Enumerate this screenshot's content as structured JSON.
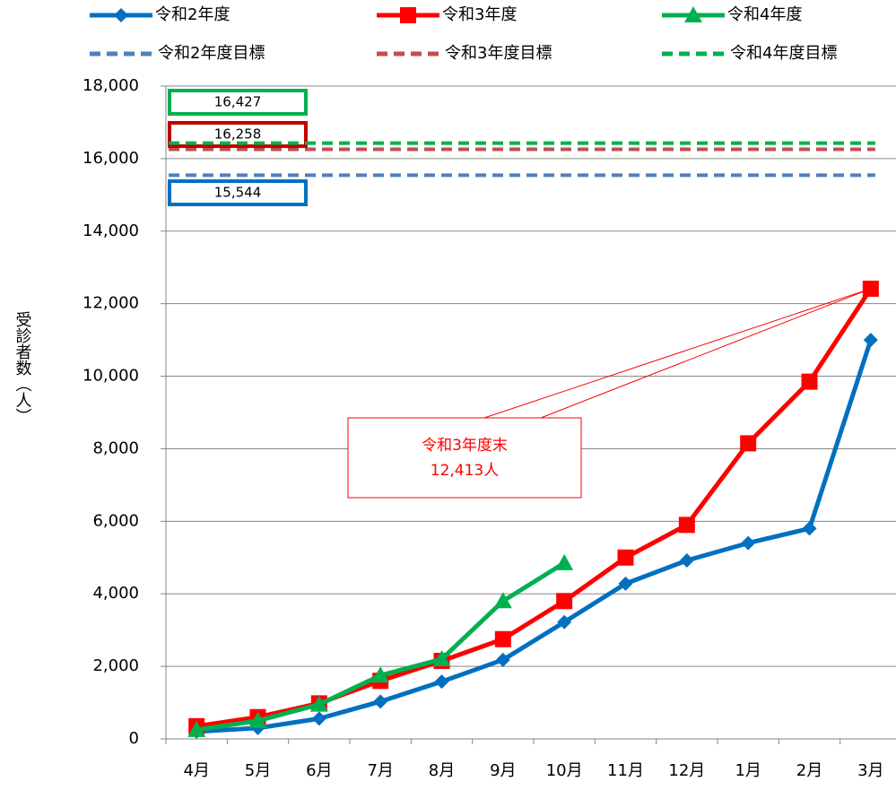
{
  "chart_data": {
    "type": "line",
    "y_label": "受診者数（人）",
    "categories": [
      "4月",
      "5月",
      "6月",
      "7月",
      "8月",
      "9月",
      "10月",
      "11月",
      "12月",
      "1月",
      "2月",
      "3月"
    ],
    "series": [
      {
        "name": "令和2年度",
        "color": "#0070c0",
        "marker": "diamond",
        "values": [
          200,
          300,
          560,
          1030,
          1580,
          2180,
          3220,
          4280,
          4920,
          5400,
          5800,
          11000
        ]
      },
      {
        "name": "令和3年度",
        "color": "#ff0000",
        "marker": "square",
        "values": [
          350,
          600,
          980,
          1600,
          2150,
          2750,
          3800,
          5000,
          5900,
          8150,
          9850,
          12413
        ]
      },
      {
        "name": "令和4年度",
        "color": "#00b050",
        "marker": "triangle",
        "values": [
          250,
          500,
          950,
          1750,
          2200,
          3800,
          4850,
          null,
          null,
          null,
          null,
          null
        ]
      }
    ],
    "targets": [
      {
        "name": "令和2年度目標",
        "color": "#4f81bd",
        "box_color": "#0070c0",
        "value": 15544,
        "value_label": "15,544"
      },
      {
        "name": "令和3年度目標",
        "color": "#c0504d",
        "box_color": "#c00000",
        "value": 16258,
        "value_label": "16,258"
      },
      {
        "name": "令和4年度目標",
        "color": "#00b050",
        "box_color": "#00b050",
        "value": 16427,
        "value_label": "16,427"
      }
    ],
    "annotation": {
      "lines": [
        "令和3年度末",
        "12,413人"
      ]
    },
    "ylim": [
      0,
      18000
    ],
    "yticks": [
      0,
      {
        "value": 2000,
        "label": "2,000"
      },
      {
        "value": 4000,
        "label": "4,000"
      },
      {
        "value": 6000,
        "label": "6,000"
      },
      {
        "value": 8000,
        "label": "8,000"
      },
      {
        "value": 10000,
        "label": "10,000"
      },
      {
        "value": 12000,
        "label": "12,000"
      },
      {
        "value": 14000,
        "label": "14,000"
      },
      {
        "value": 16000,
        "label": "16,000"
      },
      {
        "value": 18000,
        "label": "18,000"
      }
    ],
    "grid": true
  }
}
